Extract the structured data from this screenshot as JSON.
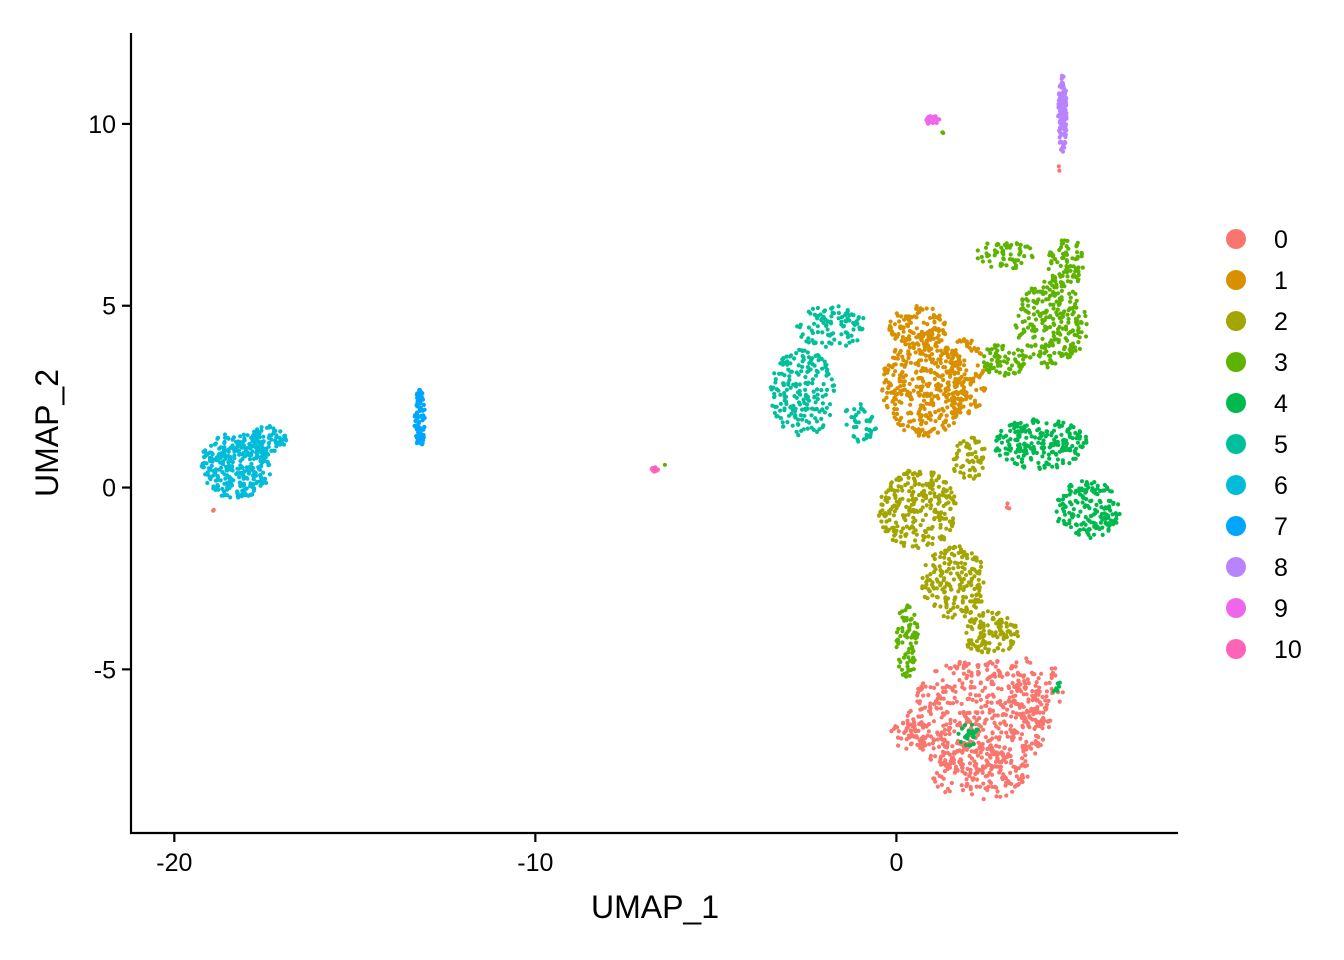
{
  "chart_data": {
    "type": "scatter",
    "title": "",
    "xlabel": "UMAP_1",
    "ylabel": "UMAP_2",
    "xlim": [
      -21.2,
      7.8
    ],
    "ylim": [
      -9.5,
      12.5
    ],
    "xticks": [
      -20,
      -10,
      0
    ],
    "xtick_labels": [
      "-20",
      "-10",
      "0"
    ],
    "yticks": [
      10,
      5,
      0,
      -5
    ],
    "ytick_labels": [
      "10",
      "5",
      "0",
      "-5"
    ],
    "grid": false,
    "legend_position": "right",
    "clusters": [
      {
        "name": "0",
        "color": "#F8766D",
        "regions": [
          {
            "cx": 2.3,
            "cy": -6.3,
            "rx": 2.0,
            "ry": 1.6,
            "n": 500
          },
          {
            "cx": 2.3,
            "cy": -7.8,
            "rx": 1.4,
            "ry": 0.8,
            "n": 160
          },
          {
            "cx": 3.8,
            "cy": -5.6,
            "rx": 0.9,
            "ry": 1.0,
            "n": 90
          },
          {
            "cx": 0.4,
            "cy": -6.8,
            "rx": 0.6,
            "ry": 0.4,
            "n": 50
          },
          {
            "cx": 3.1,
            "cy": -0.5,
            "rx": 0.08,
            "ry": 0.1,
            "n": 3
          },
          {
            "cx": -18.9,
            "cy": -0.6,
            "rx": 0.05,
            "ry": 0.05,
            "n": 2
          },
          {
            "cx": 4.5,
            "cy": 8.8,
            "rx": 0.03,
            "ry": 0.1,
            "n": 2
          }
        ]
      },
      {
        "name": "1",
        "color": "#D89000",
        "regions": [
          {
            "cx": 0.8,
            "cy": 2.8,
            "rx": 1.2,
            "ry": 1.4,
            "n": 380
          },
          {
            "cx": 0.6,
            "cy": 4.4,
            "rx": 0.8,
            "ry": 0.6,
            "n": 120
          },
          {
            "cx": 1.9,
            "cy": 3.0,
            "rx": 0.6,
            "ry": 1.1,
            "n": 100
          }
        ]
      },
      {
        "name": "2",
        "color": "#A3A500",
        "regions": [
          {
            "cx": 0.6,
            "cy": -0.6,
            "rx": 1.1,
            "ry": 1.1,
            "n": 260
          },
          {
            "cx": 1.6,
            "cy": -2.6,
            "rx": 0.9,
            "ry": 1.0,
            "n": 200
          },
          {
            "cx": 2.6,
            "cy": -4.0,
            "rx": 0.8,
            "ry": 0.6,
            "n": 120
          },
          {
            "cx": 2.0,
            "cy": 0.8,
            "rx": 0.5,
            "ry": 0.6,
            "n": 60
          }
        ]
      },
      {
        "name": "3",
        "color": "#5EB300",
        "regions": [
          {
            "cx": 4.3,
            "cy": 4.5,
            "rx": 1.0,
            "ry": 1.2,
            "n": 240
          },
          {
            "cx": 4.7,
            "cy": 6.2,
            "rx": 0.5,
            "ry": 0.7,
            "n": 80
          },
          {
            "cx": 3.0,
            "cy": 6.4,
            "rx": 0.8,
            "ry": 0.4,
            "n": 60
          },
          {
            "cx": 3.0,
            "cy": 3.5,
            "rx": 0.6,
            "ry": 0.5,
            "n": 70
          },
          {
            "cx": 0.3,
            "cy": -4.2,
            "rx": 0.3,
            "ry": 1.1,
            "n": 80
          },
          {
            "cx": 1.3,
            "cy": 9.8,
            "rx": 0.05,
            "ry": 0.05,
            "n": 2
          },
          {
            "cx": -6.4,
            "cy": 0.6,
            "rx": 0.03,
            "ry": 0.03,
            "n": 1
          }
        ]
      },
      {
        "name": "4",
        "color": "#00B94E",
        "regions": [
          {
            "cx": 4.0,
            "cy": 1.2,
            "rx": 1.3,
            "ry": 0.7,
            "n": 220
          },
          {
            "cx": 5.3,
            "cy": -0.6,
            "rx": 0.9,
            "ry": 0.8,
            "n": 170
          },
          {
            "cx": 2.0,
            "cy": -6.8,
            "rx": 0.3,
            "ry": 0.3,
            "n": 25
          },
          {
            "cx": 4.4,
            "cy": -5.5,
            "rx": 0.2,
            "ry": 0.2,
            "n": 6
          }
        ]
      },
      {
        "name": "5",
        "color": "#00BF9A",
        "regions": [
          {
            "cx": -2.6,
            "cy": 2.6,
            "rx": 0.9,
            "ry": 1.2,
            "n": 200
          },
          {
            "cx": -1.8,
            "cy": 4.4,
            "rx": 1.0,
            "ry": 0.6,
            "n": 100
          },
          {
            "cx": -1.0,
            "cy": 1.8,
            "rx": 0.5,
            "ry": 0.6,
            "n": 40
          }
        ]
      },
      {
        "name": "6",
        "color": "#00BCD8",
        "regions": [
          {
            "cx": -18.3,
            "cy": 0.6,
            "rx": 1.0,
            "ry": 0.9,
            "n": 330
          },
          {
            "cx": -17.4,
            "cy": 1.3,
            "rx": 0.5,
            "ry": 0.4,
            "n": 90
          }
        ]
      },
      {
        "name": "7",
        "color": "#00A5FF",
        "regions": [
          {
            "cx": -13.2,
            "cy": 1.9,
            "rx": 0.15,
            "ry": 0.8,
            "n": 90
          }
        ]
      },
      {
        "name": "8",
        "color": "#B983FF",
        "regions": [
          {
            "cx": 4.6,
            "cy": 10.3,
            "rx": 0.12,
            "ry": 1.1,
            "n": 120
          }
        ]
      },
      {
        "name": "9",
        "color": "#F066EA",
        "regions": [
          {
            "cx": 1.0,
            "cy": 10.1,
            "rx": 0.2,
            "ry": 0.12,
            "n": 25
          }
        ]
      },
      {
        "name": "10",
        "color": "#FF63B6",
        "regions": [
          {
            "cx": -6.7,
            "cy": 0.5,
            "rx": 0.1,
            "ry": 0.06,
            "n": 14
          }
        ]
      }
    ]
  }
}
